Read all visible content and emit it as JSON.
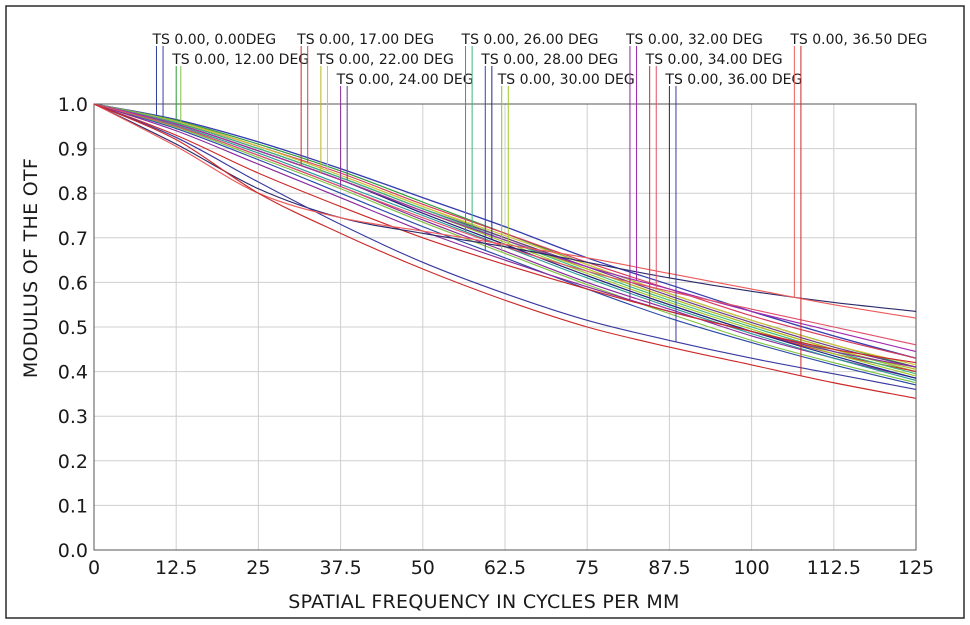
{
  "chart_data": {
    "type": "line",
    "title": "",
    "xlabel": "SPATIAL FREQUENCY IN CYCLES PER MM",
    "ylabel": "MODULUS OF THE OTF",
    "xlim": [
      0,
      125
    ],
    "ylim": [
      0,
      1
    ],
    "grid": true,
    "x_ticks": [
      0,
      12.5,
      25,
      37.5,
      50,
      62.5,
      75,
      87.5,
      100,
      112.5,
      125
    ],
    "x_tick_labels": [
      "0",
      "12.5",
      "25",
      "37.5",
      "50",
      "62.5",
      "75",
      "87.5",
      "100",
      "112.5",
      "125"
    ],
    "y_ticks": [
      0,
      0.1,
      0.2,
      0.3,
      0.4,
      0.5,
      0.6,
      0.7,
      0.8,
      0.9,
      1.0
    ],
    "y_tick_labels": [
      "0.0",
      "0.1",
      "0.2",
      "0.3",
      "0.4",
      "0.5",
      "0.6",
      "0.7",
      "0.8",
      "0.9",
      "1.0"
    ],
    "x": [
      0,
      12.5,
      25,
      37.5,
      50,
      62.5,
      75,
      87.5,
      100,
      112.5,
      125
    ],
    "series": [
      {
        "name": "TS 0.00, 0.00DEG",
        "colors": [
          "#2f3d9c",
          "#3a3fb0"
        ],
        "tangential": [
          1.0,
          0.965,
          0.915,
          0.855,
          0.79,
          0.725,
          0.655,
          0.595,
          0.535,
          0.48,
          0.43
        ],
        "sagittal": [
          1.0,
          0.965,
          0.915,
          0.855,
          0.79,
          0.725,
          0.655,
          0.595,
          0.535,
          0.48,
          0.43
        ]
      },
      {
        "name": "TS 0.00, 12.00 DEG",
        "colors": [
          "#2d9a3c",
          "#7fc241"
        ],
        "tangential": [
          1.0,
          0.963,
          0.91,
          0.85,
          0.78,
          0.71,
          0.64,
          0.575,
          0.515,
          0.46,
          0.41
        ],
        "sagittal": [
          1.0,
          0.962,
          0.905,
          0.84,
          0.77,
          0.7,
          0.63,
          0.565,
          0.505,
          0.45,
          0.4
        ]
      },
      {
        "name": "TS 0.00, 17.00 DEG",
        "colors": [
          "#cc2a2a",
          "#d83c5a"
        ],
        "tangential": [
          1.0,
          0.955,
          0.895,
          0.83,
          0.755,
          0.685,
          0.615,
          0.55,
          0.49,
          0.44,
          0.4
        ],
        "sagittal": [
          1.0,
          0.96,
          0.905,
          0.845,
          0.775,
          0.71,
          0.645,
          0.585,
          0.525,
          0.475,
          0.43
        ]
      },
      {
        "name": "TS 0.00, 22.00 DEG",
        "colors": [
          "#b8b81f",
          "#d6c33a"
        ],
        "tangential": [
          1.0,
          0.955,
          0.895,
          0.83,
          0.76,
          0.695,
          0.63,
          0.565,
          0.505,
          0.45,
          0.405
        ],
        "sagittal": [
          1.0,
          0.96,
          0.905,
          0.84,
          0.77,
          0.705,
          0.64,
          0.575,
          0.515,
          0.46,
          0.415
        ]
      },
      {
        "name": "TS 0.00, 24.00 DEG",
        "colors": [
          "#8a2a9a",
          "#6a3a8a"
        ],
        "tangential": [
          1.0,
          0.95,
          0.885,
          0.815,
          0.74,
          0.67,
          0.6,
          0.54,
          0.48,
          0.43,
          0.385
        ],
        "sagittal": [
          1.0,
          0.958,
          0.9,
          0.835,
          0.765,
          0.7,
          0.635,
          0.57,
          0.51,
          0.455,
          0.41
        ]
      },
      {
        "name": "TS 0.00, 26.00 DEG",
        "colors": [
          "#2a9a9a",
          "#3ab87a"
        ],
        "tangential": [
          1.0,
          0.952,
          0.89,
          0.82,
          0.75,
          0.68,
          0.61,
          0.545,
          0.485,
          0.43,
          0.38
        ],
        "sagittal": [
          1.0,
          0.958,
          0.9,
          0.835,
          0.765,
          0.695,
          0.625,
          0.56,
          0.5,
          0.445,
          0.395
        ]
      },
      {
        "name": "TS 0.00, 28.00 DEG",
        "colors": [
          "#2a4aa8",
          "#1a2a8a"
        ],
        "tangential": [
          1.0,
          0.945,
          0.875,
          0.8,
          0.725,
          0.655,
          0.585,
          0.52,
          0.465,
          0.415,
          0.37
        ],
        "sagittal": [
          1.0,
          0.955,
          0.895,
          0.83,
          0.755,
          0.685,
          0.615,
          0.55,
          0.49,
          0.435,
          0.385
        ]
      },
      {
        "name": "TS 0.00, 30.00 DEG",
        "colors": [
          "#7fc241",
          "#a2c82a"
        ],
        "tangential": [
          1.0,
          0.948,
          0.88,
          0.81,
          0.735,
          0.665,
          0.595,
          0.53,
          0.47,
          0.42,
          0.375
        ],
        "sagittal": [
          1.0,
          0.955,
          0.895,
          0.83,
          0.76,
          0.69,
          0.62,
          0.555,
          0.495,
          0.44,
          0.39
        ]
      },
      {
        "name": "TS 0.00, 32.00 DEG",
        "colors": [
          "#8a2a9a",
          "#a02ab0"
        ],
        "tangential": [
          1.0,
          0.94,
          0.865,
          0.79,
          0.715,
          0.65,
          0.59,
          0.535,
          0.49,
          0.445,
          0.41
        ],
        "sagittal": [
          1.0,
          0.955,
          0.895,
          0.83,
          0.76,
          0.695,
          0.635,
          0.585,
          0.535,
          0.49,
          0.445
        ]
      },
      {
        "name": "TS 0.00, 34.00 DEG",
        "colors": [
          "#cc2a2a",
          "#e0506a"
        ],
        "tangential": [
          1.0,
          0.93,
          0.845,
          0.77,
          0.7,
          0.64,
          0.585,
          0.535,
          0.49,
          0.45,
          0.42
        ],
        "sagittal": [
          1.0,
          0.95,
          0.885,
          0.815,
          0.745,
          0.68,
          0.625,
          0.58,
          0.54,
          0.5,
          0.46
        ]
      },
      {
        "name": "TS 0.00, 36.00 DEG",
        "colors": [
          "#2a2a6a",
          "#3a3aa0"
        ],
        "tangential": [
          1.0,
          0.91,
          0.81,
          0.745,
          0.71,
          0.68,
          0.645,
          0.61,
          0.58,
          0.555,
          0.535
        ],
        "sagittal": [
          1.0,
          0.925,
          0.825,
          0.73,
          0.645,
          0.575,
          0.515,
          0.47,
          0.43,
          0.395,
          0.36
        ]
      },
      {
        "name": "TS 0.00, 36.50 DEG",
        "colors": [
          "#ee5a5a",
          "#cc2a2a"
        ],
        "tangential": [
          1.0,
          0.905,
          0.8,
          0.745,
          0.715,
          0.685,
          0.655,
          0.62,
          0.585,
          0.55,
          0.52
        ],
        "sagittal": [
          1.0,
          0.92,
          0.8,
          0.71,
          0.63,
          0.56,
          0.5,
          0.455,
          0.415,
          0.375,
          0.34
        ]
      }
    ],
    "legend_entries": [
      {
        "text": "TS 0.00, 0.00DEG",
        "line_x": [
          9.5,
          10.5
        ],
        "color_index": 0
      },
      {
        "text": "TS 0.00, 12.00 DEG",
        "line_x": [
          12.5,
          13.2
        ],
        "color_index": 1
      },
      {
        "text": "TS 0.00, 17.00 DEG",
        "line_x": [
          31.5,
          32.5
        ],
        "color_index": 2
      },
      {
        "text": "TS 0.00, 22.00 DEG",
        "line_x": [
          34.5,
          35.5
        ],
        "color_index": 3
      },
      {
        "text": "TS 0.00, 24.00 DEG",
        "line_x": [
          37.5,
          38.5
        ],
        "color_index": 4
      },
      {
        "text": "TS 0.00, 26.00 DEG",
        "line_x": [
          56.5,
          57.5
        ],
        "color_index": 5
      },
      {
        "text": "TS 0.00, 28.00 DEG",
        "line_x": [
          59.5,
          60.5
        ],
        "color_index": 6
      },
      {
        "text": "TS 0.00, 30.00 DEG",
        "line_x": [
          62.0,
          63.0
        ],
        "color_index": 7
      },
      {
        "text": "TS 0.00, 32.00 DEG",
        "line_x": [
          81.5,
          82.5
        ],
        "color_index": 8
      },
      {
        "text": "TS 0.00, 34.00 DEG",
        "line_x": [
          84.5,
          85.5
        ],
        "color_index": 9
      },
      {
        "text": "TS 0.00, 36.00 DEG",
        "line_x": [
          87.5,
          88.5
        ],
        "color_index": 10
      },
      {
        "text": "TS 0.00, 36.50 DEG",
        "line_x": [
          106.5,
          107.5
        ],
        "color_index": 11
      }
    ]
  }
}
